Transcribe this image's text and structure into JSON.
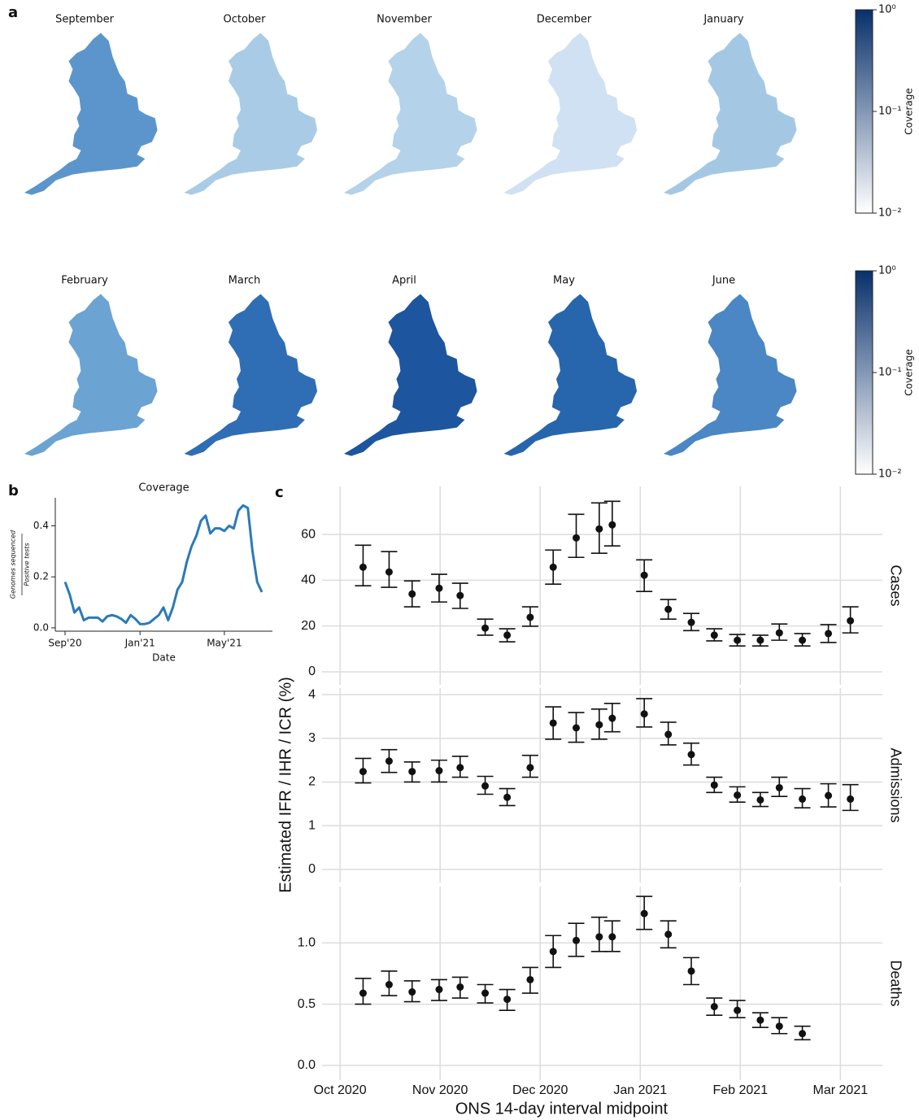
{
  "panel_labels": [
    "a",
    "b",
    "c"
  ],
  "chart_data": [
    {
      "type": "choropleth",
      "maps": [
        {
          "title": "September",
          "color": "#5b95cb"
        },
        {
          "title": "October",
          "color": "#a9cbe6"
        },
        {
          "title": "November",
          "color": "#b4d2ea"
        },
        {
          "title": "December",
          "color": "#cfe1f2"
        },
        {
          "title": "January",
          "color": "#a4c8e4"
        }
      ],
      "colorbar": {
        "label": "Coverage",
        "log": true,
        "clim": [
          0.01,
          1
        ],
        "colors": [
          "#ffffff",
          "#08306b"
        ],
        "ticks": [
          {
            "value": 1,
            "label": "10⁰"
          },
          {
            "value": 0.1,
            "label": "10⁻¹"
          },
          {
            "value": 0.01,
            "label": "10⁻²"
          }
        ]
      }
    },
    {
      "type": "choropleth",
      "maps": [
        {
          "title": "February",
          "color": "#6ba3d3"
        },
        {
          "title": "March",
          "color": "#2f6eb5"
        },
        {
          "title": "April",
          "color": "#1d569e"
        },
        {
          "title": "May",
          "color": "#2766ad"
        },
        {
          "title": "June",
          "color": "#4a87c4"
        }
      ],
      "colorbar": {
        "label": "Coverage",
        "log": true,
        "clim": [
          0.01,
          1
        ],
        "colors": [
          "#ffffff",
          "#08306b"
        ],
        "ticks": [
          {
            "value": 1,
            "label": "10⁰"
          },
          {
            "value": 0.1,
            "label": "10⁻¹"
          },
          {
            "value": 0.01,
            "label": "10⁻²"
          }
        ]
      }
    },
    {
      "type": "line",
      "title": "Coverage",
      "xlabel": "Date",
      "ylabel": {
        "numerator": "Genomes sequenced",
        "denominator": "Positive tests"
      },
      "color": "#2a7ab9",
      "categories": [
        "Sep'20",
        null,
        null,
        null,
        null,
        null,
        null,
        null,
        null,
        null,
        null,
        null,
        null,
        null,
        null,
        null,
        "Jan'21",
        null,
        null,
        null,
        null,
        null,
        null,
        null,
        null,
        null,
        null,
        null,
        null,
        null,
        null,
        null,
        null,
        null,
        "May'21",
        null,
        null,
        null,
        null,
        null,
        null,
        null,
        null
      ],
      "values": [
        0.18,
        0.13,
        0.06,
        0.08,
        0.03,
        0.04,
        0.04,
        0.04,
        0.025,
        0.045,
        0.05,
        0.045,
        0.035,
        0.02,
        0.05,
        0.035,
        0.015,
        0.015,
        0.02,
        0.035,
        0.05,
        0.08,
        0.03,
        0.08,
        0.15,
        0.18,
        0.26,
        0.32,
        0.36,
        0.42,
        0.44,
        0.37,
        0.39,
        0.39,
        0.38,
        0.4,
        0.39,
        0.46,
        0.48,
        0.47,
        0.3,
        0.18,
        0.14
      ],
      "ylim": [
        -0.013,
        0.51
      ],
      "yticks": [
        {
          "value": 0,
          "label": "0.0"
        },
        0.2,
        0.4
      ]
    },
    {
      "type": "errorbar",
      "xlabel": "ONS 14-day interval midpoint",
      "ylabel": "Estimated IFR / IHR / ICR (%)",
      "xlim": [
        -0.18,
        5.42
      ],
      "xticks": [
        {
          "value": 0,
          "label": "Oct 2020"
        },
        {
          "value": 1,
          "label": "Nov 2020"
        },
        {
          "value": 2,
          "label": "Dec 2020"
        },
        {
          "value": 3,
          "label": "Jan 2021"
        },
        {
          "value": 4,
          "label": "Feb 2021"
        },
        {
          "value": 5,
          "label": "Mar 2021"
        }
      ],
      "grid": true,
      "color": "#111111",
      "panels": [
        {
          "name": "Cases",
          "ylim": [
            -5.7,
            81
          ],
          "yticks": [
            0,
            20,
            40,
            60
          ],
          "x": [
            0.23,
            0.49,
            0.72,
            0.99,
            1.2,
            1.45,
            1.67,
            1.9,
            2.13,
            2.36,
            2.59,
            2.72,
            3.04,
            3.28,
            3.51,
            3.74,
            3.97,
            4.2,
            4.39,
            4.62,
            4.88,
            5.1
          ],
          "values": [
            45.7,
            43.6,
            34,
            36.5,
            33.3,
            19.1,
            16,
            23.8,
            45.7,
            58.5,
            62.4,
            64.2,
            42.2,
            27.3,
            21.6,
            16,
            13.8,
            13.8,
            17,
            13.8,
            16.7,
            22.3
          ],
          "lower": [
            37.6,
            36.9,
            28.4,
            30.5,
            27.7,
            16,
            13.1,
            19.9,
            38.3,
            50,
            51.8,
            55,
            35.1,
            23,
            18,
            13.5,
            11.3,
            11.3,
            13.8,
            11.3,
            12.8,
            17
          ],
          "upper": [
            55.3,
            52.5,
            39.7,
            42.6,
            38.7,
            23,
            18.8,
            28.4,
            53.2,
            68.8,
            73.8,
            74.5,
            48.9,
            31.6,
            25.5,
            18.8,
            16.3,
            16,
            20.9,
            16.7,
            20.6,
            28.4
          ]
        },
        {
          "name": "Admissions",
          "ylim": [
            -0.3,
            4.15
          ],
          "yticks": [
            0,
            1,
            2,
            3,
            4
          ],
          "x": [
            0.23,
            0.49,
            0.72,
            0.99,
            1.2,
            1.45,
            1.67,
            1.9,
            2.13,
            2.36,
            2.59,
            2.72,
            3.04,
            3.28,
            3.51,
            3.74,
            3.97,
            4.2,
            4.39,
            4.62,
            4.88,
            5.1
          ],
          "values": [
            2.24,
            2.48,
            2.24,
            2.26,
            2.33,
            1.91,
            1.65,
            2.33,
            3.35,
            3.24,
            3.31,
            3.46,
            3.56,
            3.09,
            2.63,
            1.93,
            1.7,
            1.59,
            1.87,
            1.61,
            1.69,
            1.61
          ],
          "lower": [
            1.98,
            2.22,
            2,
            2,
            2.11,
            1.72,
            1.46,
            2.11,
            2.98,
            2.91,
            2.98,
            3.15,
            3.26,
            2.85,
            2.39,
            1.76,
            1.54,
            1.44,
            1.67,
            1.41,
            1.43,
            1.35
          ],
          "upper": [
            2.54,
            2.74,
            2.46,
            2.5,
            2.59,
            2.13,
            1.85,
            2.61,
            3.72,
            3.59,
            3.67,
            3.8,
            3.91,
            3.37,
            2.89,
            2.11,
            1.89,
            1.76,
            2.11,
            1.85,
            1.96,
            1.94
          ]
        },
        {
          "name": "Deaths",
          "ylim": [
            -0.12,
            1.46
          ],
          "yticks": [
            {
              "value": 0,
              "label": "0.0"
            },
            0.5,
            {
              "value": 1,
              "label": "1.0"
            }
          ],
          "x": [
            0.23,
            0.49,
            0.72,
            0.99,
            1.2,
            1.45,
            1.67,
            1.9,
            2.13,
            2.36,
            2.59,
            2.72,
            3.04,
            3.28,
            3.51,
            3.74,
            3.97,
            4.2,
            4.39,
            4.62
          ],
          "values": [
            0.59,
            0.66,
            0.6,
            0.62,
            0.64,
            0.59,
            0.54,
            0.7,
            0.93,
            1.02,
            1.05,
            1.05,
            1.24,
            1.07,
            0.77,
            0.48,
            0.45,
            0.37,
            0.32,
            0.26
          ],
          "lower": [
            0.5,
            0.57,
            0.52,
            0.53,
            0.55,
            0.51,
            0.45,
            0.59,
            0.8,
            0.89,
            0.93,
            0.93,
            1.11,
            0.96,
            0.66,
            0.41,
            0.39,
            0.31,
            0.26,
            0.21
          ],
          "upper": [
            0.71,
            0.77,
            0.69,
            0.7,
            0.72,
            0.66,
            0.62,
            0.8,
            1.06,
            1.16,
            1.21,
            1.18,
            1.38,
            1.18,
            0.88,
            0.55,
            0.53,
            0.43,
            0.39,
            0.32
          ]
        }
      ]
    }
  ]
}
